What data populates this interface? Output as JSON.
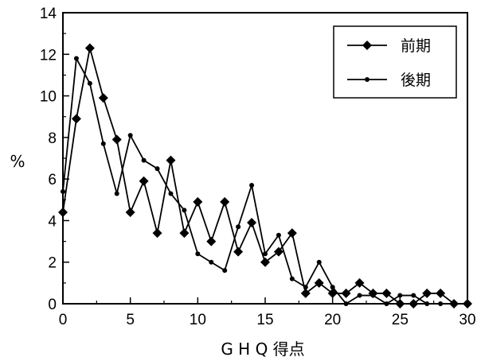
{
  "chart_data": {
    "type": "line",
    "title": "",
    "xlabel": "G H Q 得点",
    "ylabel": "%",
    "xlim": [
      0,
      30
    ],
    "ylim": [
      0,
      14
    ],
    "xticks": [
      0,
      5,
      10,
      15,
      20,
      25,
      30
    ],
    "yticks": [
      0,
      2,
      4,
      6,
      8,
      10,
      12,
      14
    ],
    "legend_position": "top-right",
    "grid": false,
    "series": [
      {
        "name": "前期",
        "marker": "diamond",
        "color": "#000000",
        "x": [
          0,
          1,
          2,
          3,
          4,
          5,
          6,
          7,
          8,
          9,
          10,
          11,
          12,
          13,
          14,
          15,
          16,
          17,
          18,
          19,
          20,
          21,
          22,
          23,
          24,
          25,
          26,
          27,
          28,
          29,
          30
        ],
        "y": [
          4.4,
          8.9,
          12.3,
          9.9,
          7.9,
          4.4,
          5.9,
          3.4,
          6.9,
          3.4,
          4.9,
          3.0,
          4.9,
          2.5,
          3.9,
          2.0,
          2.5,
          3.4,
          0.5,
          1.0,
          0.5,
          0.5,
          1.0,
          0.5,
          0.5,
          0.0,
          0.0,
          0.5,
          0.5,
          0.0,
          0.0
        ]
      },
      {
        "name": "後期",
        "marker": "circle",
        "color": "#000000",
        "x": [
          0,
          1,
          2,
          3,
          4,
          5,
          6,
          7,
          8,
          9,
          10,
          11,
          12,
          13,
          14,
          15,
          16,
          17,
          18,
          19,
          20,
          21,
          22,
          23,
          24,
          25,
          26,
          27,
          28,
          29,
          30
        ],
        "y": [
          5.4,
          11.8,
          10.6,
          7.7,
          5.3,
          8.1,
          6.9,
          6.5,
          5.3,
          4.5,
          2.4,
          2.0,
          1.6,
          3.7,
          5.7,
          2.4,
          3.3,
          1.2,
          0.8,
          2.0,
          0.8,
          0.0,
          0.4,
          0.4,
          0.0,
          0.4,
          0.4,
          0.0,
          0.0,
          0.0,
          0.0
        ]
      }
    ]
  }
}
